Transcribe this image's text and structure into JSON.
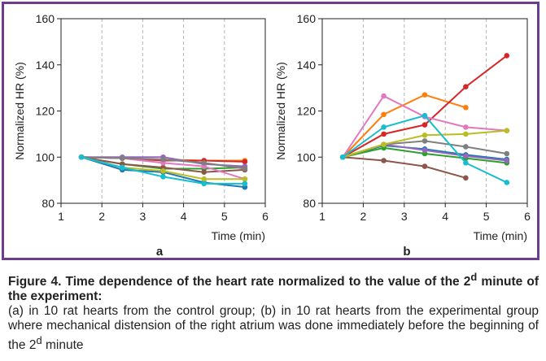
{
  "colors": {
    "frame": "#6a3d8f",
    "series": [
      "#1f77b4",
      "#ff7f0e",
      "#2ca02c",
      "#d62728",
      "#9467bd",
      "#8c564b",
      "#e377c2",
      "#7f7f7f",
      "#bcbd22",
      "#17becf"
    ]
  },
  "chart_data": [
    {
      "type": "line",
      "panel_label": "a",
      "xlabel": "Time (min)",
      "ylabel": "Normalized HR (%)",
      "xlim": [
        1,
        6
      ],
      "ylim": [
        80,
        160
      ],
      "xticks": [
        1,
        2,
        3,
        4,
        5,
        6
      ],
      "yticks": [
        80,
        100,
        120,
        140,
        160
      ],
      "grid": "vertical dashed",
      "x": [
        1.5,
        2.5,
        3.5,
        4.5,
        5.5
      ],
      "series": [
        {
          "color": "#1f77b4",
          "values": [
            100,
            94.5,
            93.5,
            89,
            87
          ]
        },
        {
          "color": "#ff7f0e",
          "values": [
            100,
            99.5,
            99,
            98.5,
            98.5
          ]
        },
        {
          "color": "#2ca02c",
          "values": [
            100,
            97,
            95,
            95,
            95.5
          ]
        },
        {
          "color": "#d62728",
          "values": [
            100,
            99.5,
            98.5,
            98.5,
            98
          ]
        },
        {
          "color": "#9467bd",
          "values": [
            100,
            100,
            100,
            97,
            96
          ]
        },
        {
          "color": "#8c564b",
          "values": [
            100,
            97,
            95.5,
            93.5,
            94.5
          ]
        },
        {
          "color": "#e377c2",
          "values": [
            100,
            99.5,
            97.5,
            96,
            90.5
          ]
        },
        {
          "color": "#7f7f7f",
          "values": [
            100,
            99.5,
            99,
            97.5,
            95
          ]
        },
        {
          "color": "#bcbd22",
          "values": [
            100,
            95.5,
            94,
            90.5,
            90.5
          ]
        },
        {
          "color": "#17becf",
          "values": [
            100,
            95.5,
            91.5,
            88.5,
            88.5
          ]
        }
      ]
    },
    {
      "type": "line",
      "panel_label": "b",
      "xlabel": "Time (min)",
      "ylabel": "Normalized HR (%)",
      "xlim": [
        1,
        6
      ],
      "ylim": [
        80,
        160
      ],
      "xticks": [
        1,
        2,
        3,
        4,
        5,
        6
      ],
      "yticks": [
        80,
        100,
        120,
        140,
        160
      ],
      "grid": "vertical dashed",
      "x": [
        1.5,
        2.5,
        3.5,
        4.5,
        5.5
      ],
      "series": [
        {
          "color": "#1f77b4",
          "values": [
            100,
            105,
            103.5,
            101,
            99
          ]
        },
        {
          "color": "#ff7f0e",
          "values": [
            100,
            118.5,
            127,
            121.5,
            null
          ]
        },
        {
          "color": "#2ca02c",
          "values": [
            100,
            104,
            101.5,
            99.5,
            97.5
          ]
        },
        {
          "color": "#d62728",
          "values": [
            100,
            110,
            114,
            130.5,
            144
          ]
        },
        {
          "color": "#9467bd",
          "values": [
            100,
            105.5,
            103,
            100.5,
            98.5
          ]
        },
        {
          "color": "#8c564b",
          "values": [
            100,
            98.5,
            96,
            91,
            null
          ]
        },
        {
          "color": "#e377c2",
          "values": [
            100,
            126.5,
            117.5,
            113,
            111.5
          ]
        },
        {
          "color": "#7f7f7f",
          "values": [
            100,
            105.5,
            107,
            104.5,
            101.5
          ]
        },
        {
          "color": "#bcbd22",
          "values": [
            100,
            105.5,
            109.5,
            110,
            111.5
          ]
        },
        {
          "color": "#17becf",
          "values": [
            100,
            113,
            118,
            97.5,
            89
          ]
        }
      ]
    }
  ],
  "caption": {
    "title_prefix": "Figure 4. Time dependence of the heart rate normalized to the value of the 2",
    "title_sup": "d",
    "title_suffix": " minute of the experiment:",
    "body_prefix": "(a) in 10 rat hearts from the control group; (b) in 10 rat hearts from the experimental group where mechanical distension of the right atrium was done immediately before the beginning of the 2",
    "body_sup": "d",
    "body_suffix": " minute"
  }
}
